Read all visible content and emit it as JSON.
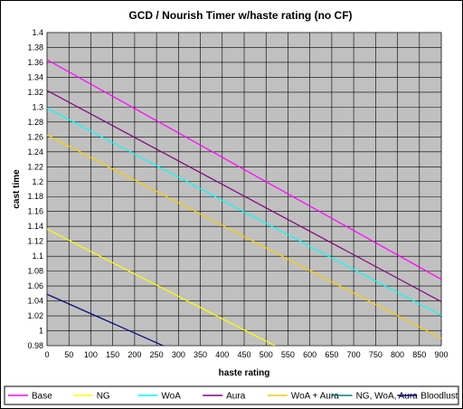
{
  "chart_data": {
    "type": "line",
    "title": "GCD / Nourish Timer w/haste rating (no CF)",
    "xlabel": "haste rating",
    "ylabel": "cast time",
    "xlim": [
      0,
      900
    ],
    "ylim": [
      0.98,
      1.4
    ],
    "x_ticks": [
      "0",
      "50",
      "100",
      "150",
      "200",
      "250",
      "300",
      "350",
      "400",
      "450",
      "500",
      "550",
      "600",
      "650",
      "700",
      "750",
      "800",
      "850",
      "900"
    ],
    "y_ticks": [
      "0.98",
      "1",
      "1.02",
      "1.04",
      "1.06",
      "1.08",
      "1.1",
      "1.12",
      "1.14",
      "1.16",
      "1.18",
      "1.2",
      "1.22",
      "1.24",
      "1.26",
      "1.28",
      "1.3",
      "1.32",
      "1.34",
      "1.36",
      "1.38",
      "1.4"
    ],
    "grid": true,
    "legend_position": "bottom",
    "series": [
      {
        "name": "Base",
        "color": "#ff00ff",
        "points": [
          [
            0,
            1.3636
          ],
          [
            900,
            1.069
          ]
        ]
      },
      {
        "name": "NG",
        "color": "#ffff00",
        "points": [
          [
            0,
            1.1364
          ],
          [
            520,
            0.98
          ]
        ]
      },
      {
        "name": "WoA",
        "color": "#00ffff",
        "points": [
          [
            0,
            1.2987
          ],
          [
            900,
            1.0205
          ]
        ]
      },
      {
        "name": "Aura",
        "color": "#800080",
        "points": [
          [
            0,
            1.3223
          ],
          [
            900,
            1.039
          ]
        ]
      },
      {
        "name": "WoA + Aura",
        "color": "#ffcc00",
        "points": [
          [
            0,
            1.2626
          ],
          [
            900,
            0.99
          ]
        ]
      },
      {
        "name": "NG, WoA, Aura",
        "color": "#008080",
        "points": []
      },
      {
        "name": "Bloodlust",
        "color": "#000080",
        "points": [
          [
            0,
            1.049
          ],
          [
            265,
            0.98
          ]
        ]
      }
    ]
  }
}
